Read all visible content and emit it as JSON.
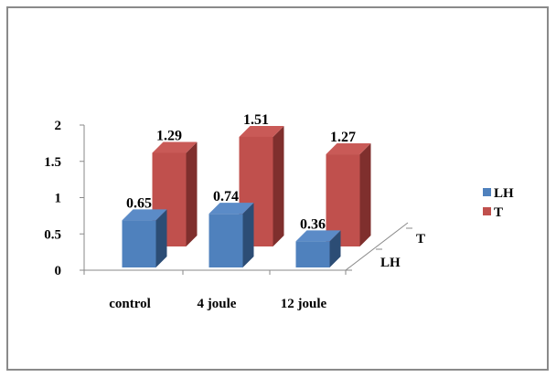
{
  "chart_data": {
    "type": "bar",
    "categories": [
      "control",
      "4 joule",
      "12 joule"
    ],
    "series": [
      {
        "name": "LH",
        "values": [
          0.65,
          0.74,
          0.36
        ]
      },
      {
        "name": "T",
        "values": [
          1.29,
          1.51,
          1.27
        ]
      }
    ],
    "value_labels": [
      [
        "0.65",
        "0.74",
        "0.36"
      ],
      [
        "1.29",
        "1.51",
        "1.27"
      ]
    ],
    "depth_labels": [
      "LH",
      "T"
    ],
    "yticks": [
      "0",
      "0.5",
      "1",
      "1.5",
      "2"
    ],
    "ylim": [
      0,
      2
    ],
    "title": "",
    "xlabel": "",
    "ylabel": "",
    "legend_position": "right",
    "grid": false,
    "colors": {
      "LH": {
        "front": "#4f81bd",
        "side": "#2c4d75",
        "top": "#5b8bc7"
      },
      "T": {
        "front": "#c0504d",
        "side": "#7f2f2d",
        "top": "#c95a57"
      }
    }
  }
}
